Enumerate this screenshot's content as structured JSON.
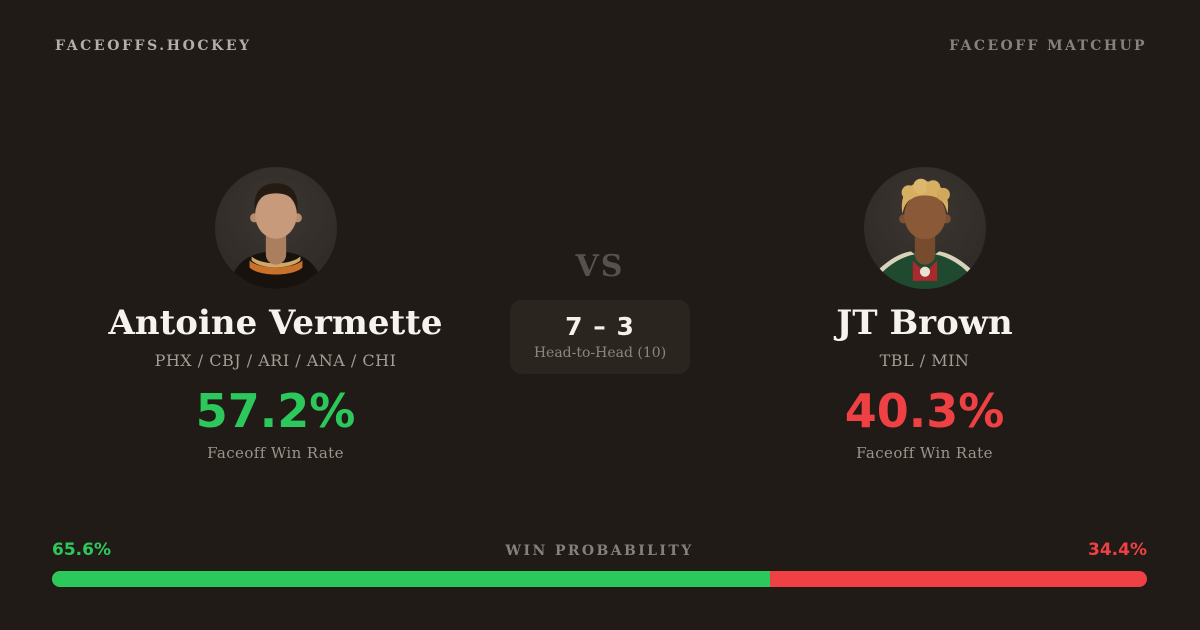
{
  "colors": {
    "background": "#201b17",
    "green": "#2dc85c",
    "red": "#ef4143"
  },
  "header": {
    "brand": "FACEOFFS.HOCKEY",
    "page_label": "FACEOFF MATCHUP"
  },
  "players": {
    "left": {
      "name": "Antoine Vermette",
      "teams": "PHX / CBJ / ARI / ANA / CHI",
      "faceoff_win_rate": "57.2%",
      "stat_label": "Faceoff Win Rate"
    },
    "right": {
      "name": "JT Brown",
      "teams": "TBL / MIN",
      "faceoff_win_rate": "40.3%",
      "stat_label": "Faceoff Win Rate"
    }
  },
  "matchup": {
    "vs_label": "VS",
    "head_to_head_score": "7 – 3",
    "head_to_head_label": "Head-to-Head (10)"
  },
  "probability": {
    "label": "WIN PROBABILITY",
    "left_pct_label": "65.6%",
    "right_pct_label": "34.4%",
    "left_value": 65.6,
    "right_value": 34.4
  }
}
